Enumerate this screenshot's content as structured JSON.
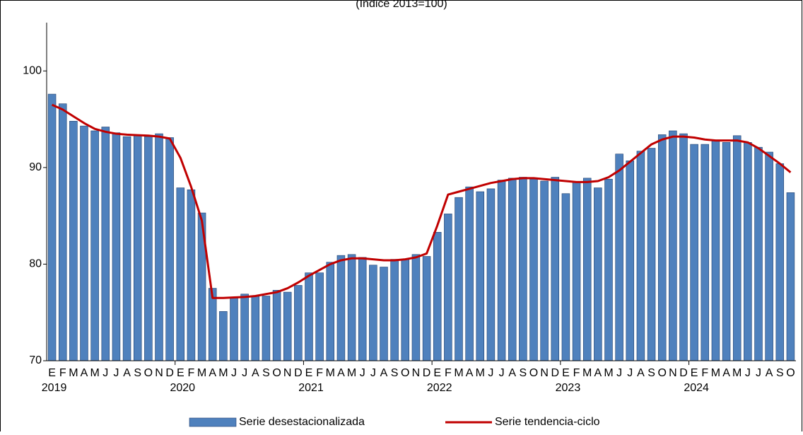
{
  "chart_data": {
    "type": "bar_line",
    "subtitle": "(Índice 2013=100)",
    "categories": [
      "E",
      "F",
      "M",
      "A",
      "M",
      "J",
      "J",
      "A",
      "S",
      "O",
      "N",
      "D",
      "E",
      "F",
      "M",
      "A",
      "M",
      "J",
      "J",
      "A",
      "S",
      "O",
      "N",
      "D",
      "E",
      "F",
      "M",
      "A",
      "M",
      "J",
      "J",
      "A",
      "S",
      "O",
      "N",
      "D",
      "E",
      "F",
      "M",
      "A",
      "M",
      "J",
      "J",
      "A",
      "S",
      "O",
      "N",
      "D",
      "E",
      "F",
      "M",
      "A",
      "M",
      "J",
      "J",
      "A",
      "S",
      "O",
      "N",
      "D",
      "E",
      "F",
      "M",
      "A",
      "M",
      "J",
      "J",
      "A",
      "S",
      "O"
    ],
    "years": [
      "2019",
      "2020",
      "2021",
      "2022",
      "2023",
      "2024"
    ],
    "series": [
      {
        "name": "Serie desestacionalizada",
        "type": "bar",
        "color": "#4f81bd",
        "values": [
          97.6,
          96.6,
          94.8,
          94.3,
          93.8,
          94.2,
          93.6,
          93.2,
          93.3,
          93.2,
          93.5,
          93.1,
          87.9,
          87.7,
          85.3,
          77.5,
          75.1,
          76.6,
          76.9,
          76.7,
          76.7,
          77.3,
          77.1,
          77.8,
          79.1,
          79.1,
          80.2,
          80.9,
          81.0,
          80.7,
          79.9,
          79.7,
          80.5,
          80.5,
          81.0,
          80.8,
          83.3,
          85.2,
          86.9,
          88.0,
          87.5,
          87.8,
          88.7,
          88.9,
          89.0,
          88.8,
          88.6,
          89.0,
          87.3,
          88.5,
          88.9,
          87.9,
          88.8,
          91.4,
          90.7,
          91.7,
          92.0,
          93.4,
          93.8,
          93.5,
          92.4,
          92.4,
          92.8,
          92.6,
          93.3,
          92.6,
          92.1,
          91.6,
          90.4,
          87.4
        ]
      },
      {
        "name": "Serie tendencia-ciclo",
        "type": "line",
        "color": "#c00000",
        "values": [
          96.5,
          96.0,
          95.3,
          94.6,
          94.0,
          93.7,
          93.5,
          93.4,
          93.35,
          93.3,
          93.2,
          93.0,
          91.0,
          88.0,
          84.5,
          76.5,
          76.5,
          76.55,
          76.6,
          76.7,
          76.9,
          77.1,
          77.5,
          78.1,
          78.8,
          79.4,
          80.0,
          80.4,
          80.6,
          80.6,
          80.5,
          80.4,
          80.4,
          80.5,
          80.7,
          81.1,
          84.0,
          87.2,
          87.5,
          87.8,
          88.1,
          88.4,
          88.6,
          88.8,
          88.9,
          88.9,
          88.8,
          88.7,
          88.6,
          88.5,
          88.5,
          88.6,
          89.0,
          89.7,
          90.6,
          91.5,
          92.4,
          92.9,
          93.2,
          93.2,
          93.1,
          92.9,
          92.8,
          92.8,
          92.8,
          92.6,
          92.0,
          91.2,
          90.4,
          89.5
        ]
      }
    ],
    "ylim": [
      70,
      105
    ],
    "yticks": [
      70,
      80,
      90,
      100
    ],
    "grid": false,
    "legend": "bottom"
  }
}
